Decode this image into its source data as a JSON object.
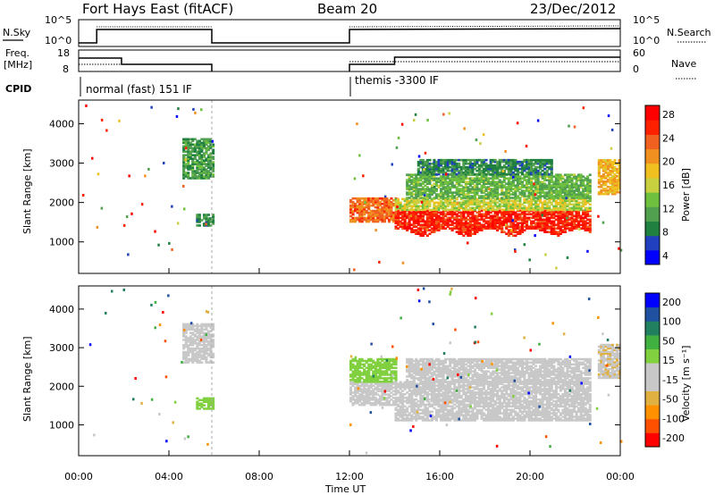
{
  "header": {
    "station": "Fort Hays East (fitACF)",
    "beam": "Beam 20",
    "date": "23/Dec/2012"
  },
  "top_panel": {
    "left_label": "N.Sky",
    "right_label": "N.Search",
    "left_ticks": [
      "10^5",
      "10^0"
    ],
    "right_ticks": [
      "10^5",
      "10^0"
    ]
  },
  "freq_panel": {
    "left_label_1": "Freq.",
    "left_label_2": "[MHz]",
    "right_label": "Nave",
    "left_ticks": [
      "18",
      "8"
    ],
    "right_ticks": [
      "60",
      "0"
    ]
  },
  "cpid": {
    "label": "CPID",
    "segments": [
      "normal (fast) 151 IF",
      "themis -3300 IF"
    ]
  },
  "colors": {
    "power": [
      "#0000ff",
      "#2040c0",
      "#208040",
      "#50a050",
      "#70c040",
      "#c8d040",
      "#f0c020",
      "#f09020",
      "#f06020",
      "#ff2000",
      "#ff0000"
    ],
    "velocity": [
      "#ff0000",
      "#ff5000",
      "#ff9000",
      "#e0b040",
      "#c8c8c8",
      "#c8c8c8",
      "#80d040",
      "#40b040",
      "#208060",
      "#2050a0",
      "#0000ff"
    ]
  },
  "chart_data": [
    {
      "type": "heatmap",
      "name": "power",
      "ylabel": "Slant Range [km]",
      "ylim": [
        200,
        4600
      ],
      "yticks": [
        "4000",
        "3000",
        "2000",
        "1000"
      ],
      "xlim": [
        "00:00",
        "24:00"
      ],
      "colorbar_label": "Power [dB]",
      "colorbar_ticks": [
        "28",
        "24",
        "20",
        "16",
        "12",
        "8",
        "4"
      ],
      "colorbar_range": [
        0,
        32
      ],
      "regions": [
        {
          "t0": 4.6,
          "t1": 5.9,
          "r0": 2600,
          "r1": 3600,
          "value": 10
        },
        {
          "t0": 5.2,
          "t1": 5.9,
          "r0": 1400,
          "r1": 1700,
          "value": 8
        },
        {
          "t0": 12.0,
          "t1": 14.0,
          "r0": 1500,
          "r1": 2100,
          "value": 24
        },
        {
          "t0": 14.0,
          "t1": 22.7,
          "r0": 1100,
          "r1": 1800,
          "value": 28
        },
        {
          "t0": 14.0,
          "t1": 22.7,
          "r0": 1800,
          "r1": 2100,
          "value": 16
        },
        {
          "t0": 14.5,
          "t1": 22.7,
          "r0": 2100,
          "r1": 2700,
          "value": 12
        },
        {
          "t0": 15.0,
          "t1": 21.0,
          "r0": 2700,
          "r1": 3100,
          "value": 8
        },
        {
          "t0": 23.0,
          "t1": 24.0,
          "r0": 2200,
          "r1": 3100,
          "value": 20
        }
      ]
    },
    {
      "type": "heatmap",
      "name": "velocity",
      "ylabel": "Slant Range [km]",
      "ylim": [
        200,
        4600
      ],
      "yticks": [
        "4000",
        "3000",
        "2000",
        "1000"
      ],
      "xlim": [
        "00:00",
        "24:00"
      ],
      "xticks": [
        "00:00",
        "04:00",
        "08:00",
        "12:00",
        "16:00",
        "20:00",
        "00:00"
      ],
      "xlabel": "Time UT",
      "colorbar_label": "Velocity [m s⁻¹]",
      "colorbar_ticks": [
        "200",
        "100",
        "50",
        "15",
        "-15",
        "-50",
        "-100",
        "-200"
      ],
      "colorbar_range": [
        -250,
        250
      ],
      "regions": [
        {
          "t0": 4.6,
          "t1": 5.9,
          "r0": 2600,
          "r1": 3600,
          "value": -30
        },
        {
          "t0": 5.2,
          "t1": 5.9,
          "r0": 1400,
          "r1": 1700,
          "value": 40
        },
        {
          "t0": 12.0,
          "t1": 14.0,
          "r0": 1500,
          "r1": 2100,
          "value": 0
        },
        {
          "t0": 12.0,
          "t1": 14.0,
          "r0": 2100,
          "r1": 2700,
          "value": 40
        },
        {
          "t0": 14.0,
          "t1": 22.7,
          "r0": 1100,
          "r1": 2100,
          "value": 0
        },
        {
          "t0": 14.5,
          "t1": 22.7,
          "r0": 2100,
          "r1": 2700,
          "value": 0
        },
        {
          "t0": 23.0,
          "t1": 24.0,
          "r0": 2200,
          "r1": 3100,
          "value": -60
        }
      ]
    }
  ]
}
